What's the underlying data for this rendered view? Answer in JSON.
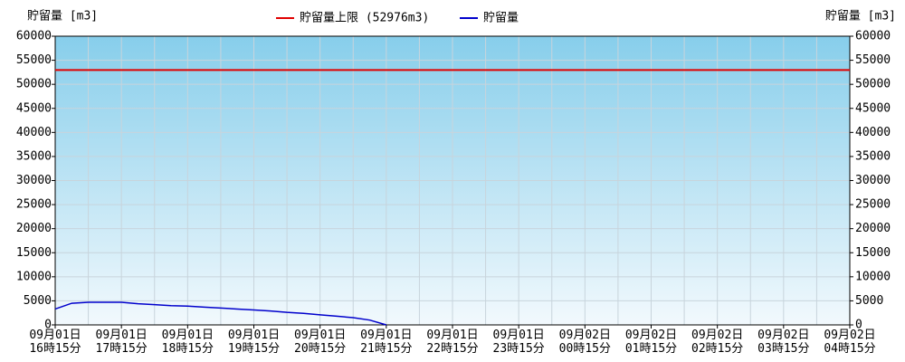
{
  "chart_data": {
    "type": "line",
    "y_label": "貯留量 [m3]",
    "y2_label": "貯留量 [m3]",
    "categories": [
      "09月01日\n16時15分",
      null,
      null,
      null,
      "09月01日\n17時15分",
      null,
      null,
      null,
      "09月01日\n18時15分",
      null,
      null,
      null,
      "09月01日\n19時15分",
      null,
      null,
      null,
      "09月01日\n20時15分",
      null,
      null,
      null,
      "09月01日\n21時15分",
      null,
      null,
      null,
      "09月01日\n22時15分",
      null,
      null,
      null,
      "09月01日\n23時15分",
      null,
      null,
      null,
      "09月02日\n00時15分",
      null,
      null,
      null,
      "09月02日\n01時15分",
      null,
      null,
      null,
      "09月02日\n02時15分",
      null,
      null,
      null,
      "09月02日\n03時15分",
      null,
      null,
      null,
      "09月02日\n04時15分"
    ],
    "series": [
      {
        "name": "貯留量",
        "color": "#0000cc",
        "values": [
          3300,
          4500,
          4700,
          4700,
          4700,
          4400,
          4200,
          4000,
          3900,
          3700,
          3500,
          3300,
          3100,
          2900,
          2600,
          2400,
          2100,
          1800,
          1500,
          1000,
          0,
          null,
          null,
          null,
          null,
          null,
          null,
          null,
          null,
          null,
          null,
          null,
          null,
          null,
          null,
          null,
          null,
          null,
          null,
          null,
          null,
          null,
          null,
          null,
          null,
          null,
          null,
          null,
          null
        ]
      }
    ],
    "reference_line": {
      "name": "貯留量上限 (52976m3)",
      "value": 52976,
      "color": "#e00000"
    },
    "ylim": [
      0,
      60000
    ],
    "yticks": [
      0,
      5000,
      10000,
      15000,
      20000,
      25000,
      30000,
      35000,
      40000,
      45000,
      50000,
      55000,
      60000
    ],
    "y2lim": [
      0,
      60000
    ],
    "y2ticks": [
      0,
      5000,
      10000,
      15000,
      20000,
      25000,
      30000,
      35000,
      40000,
      45000,
      50000,
      55000,
      60000
    ],
    "grid": true
  }
}
